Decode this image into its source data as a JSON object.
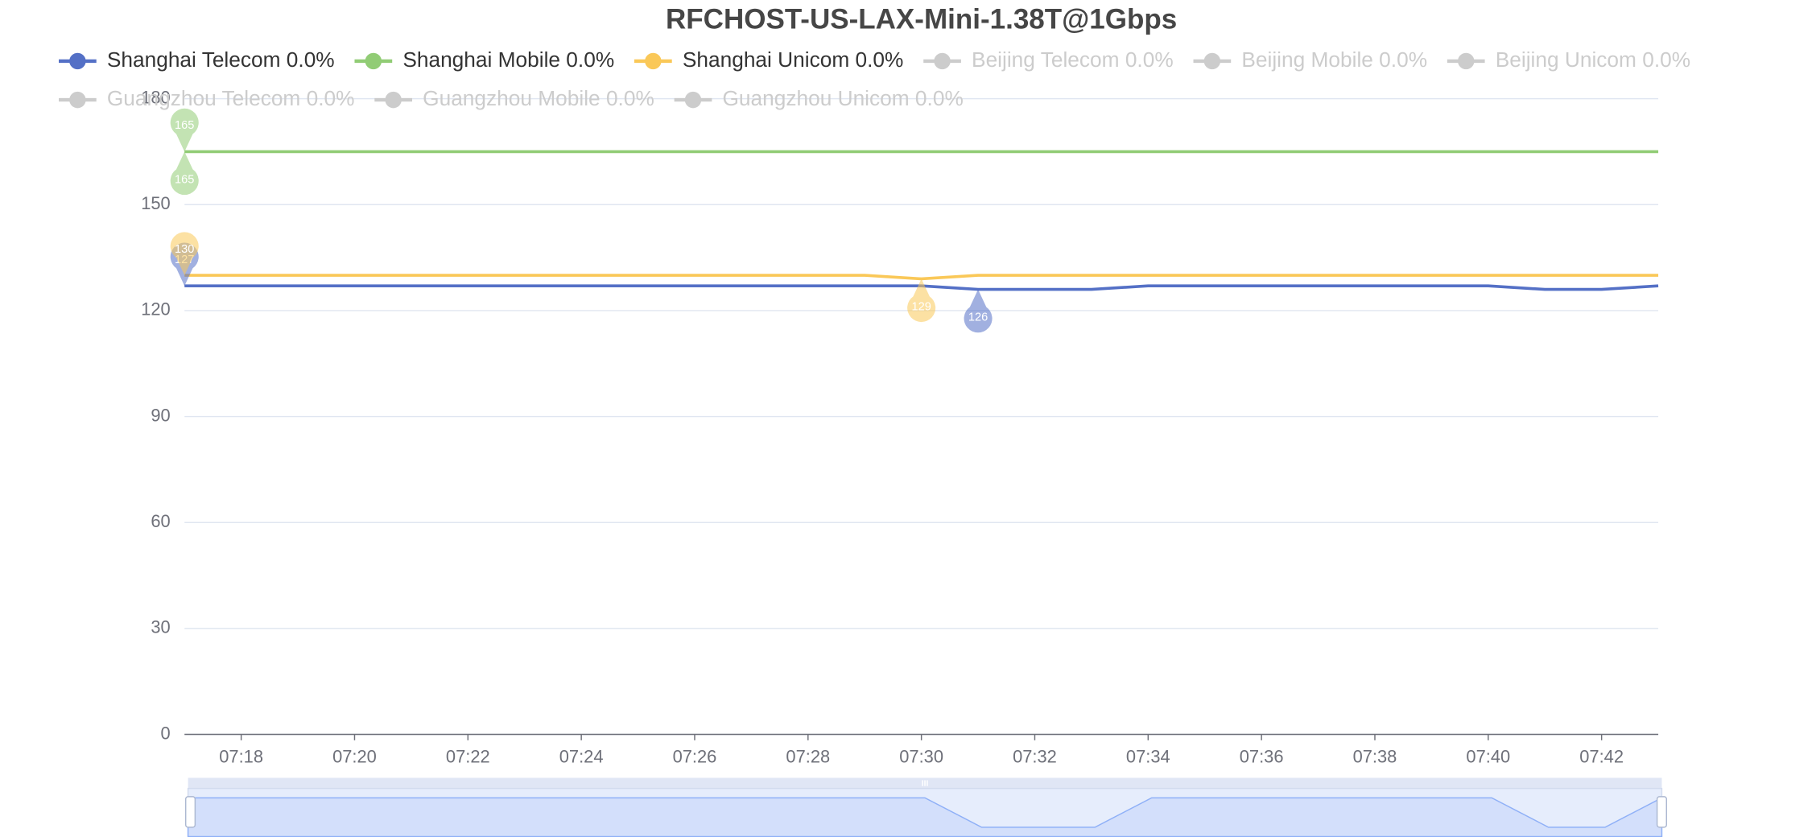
{
  "chart_data": {
    "type": "line",
    "title": "RFCHOST-US-LAX-Mini-1.38T@1Gbps",
    "categories": [
      null,
      "07:18",
      null,
      "07:20",
      null,
      "07:22",
      null,
      "07:24",
      null,
      "07:26",
      null,
      "07:28",
      null,
      "07:30",
      null,
      "07:32",
      null,
      "07:34",
      null,
      "07:36",
      null,
      "07:38",
      null,
      "07:40",
      null,
      "07:42",
      null
    ],
    "series": [
      {
        "name": "Shanghai Telecom 0.0%",
        "color": "#5470c6",
        "visible": true,
        "mark_points": [
          "max",
          "min"
        ],
        "values": [
          127,
          127,
          127,
          127,
          127,
          127,
          127,
          127,
          127,
          127,
          127,
          127,
          127,
          127,
          126,
          126,
          126,
          127,
          127,
          127,
          127,
          127,
          127,
          127,
          126,
          126,
          127
        ]
      },
      {
        "name": "Shanghai Mobile 0.0%",
        "color": "#91cc75",
        "visible": true,
        "mark_points": [
          "max",
          "min"
        ],
        "values": [
          165,
          165,
          165,
          165,
          165,
          165,
          165,
          165,
          165,
          165,
          165,
          165,
          165,
          165,
          165,
          165,
          165,
          165,
          165,
          165,
          165,
          165,
          165,
          165,
          165,
          165,
          165
        ]
      },
      {
        "name": "Shanghai Unicom 0.0%",
        "color": "#fac858",
        "visible": true,
        "mark_points": [
          "max",
          "min"
        ],
        "values": [
          130,
          130,
          130,
          130,
          130,
          130,
          130,
          130,
          130,
          130,
          130,
          130,
          130,
          129,
          130,
          130,
          130,
          130,
          130,
          130,
          130,
          130,
          130,
          130,
          130,
          130,
          130
        ]
      },
      {
        "name": "Beijing Telecom 0.0%",
        "color": "#cccccc",
        "visible": false
      },
      {
        "name": "Beijing Mobile 0.0%",
        "color": "#cccccc",
        "visible": false
      },
      {
        "name": "Beijing Unicom 0.0%",
        "color": "#cccccc",
        "visible": false
      },
      {
        "name": "Guangzhou Telecom 0.0%",
        "color": "#cccccc",
        "visible": false
      },
      {
        "name": "Guangzhou Mobile 0.0%",
        "color": "#cccccc",
        "visible": false
      },
      {
        "name": "Guangzhou Unicom 0.0%",
        "color": "#cccccc",
        "visible": false
      }
    ],
    "ylim": [
      0,
      180
    ],
    "yticks": [
      0,
      30,
      60,
      90,
      120,
      150,
      180
    ],
    "grid": true,
    "data_zoom": true
  }
}
